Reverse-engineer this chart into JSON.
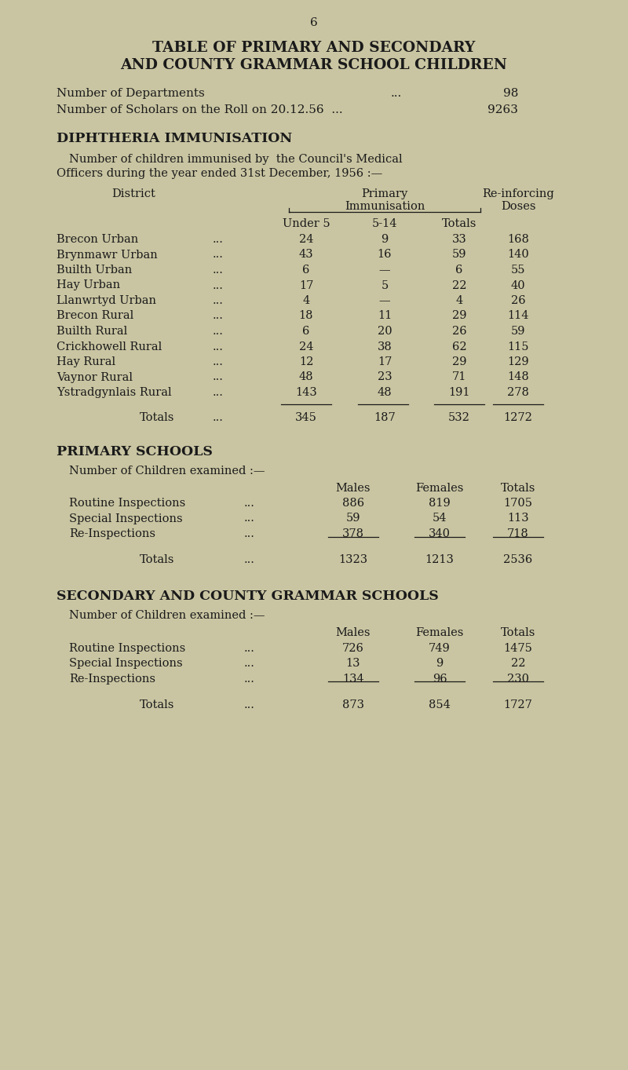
{
  "bg_color": "#c9c5a2",
  "text_color": "#1a1a1a",
  "page_number": "6",
  "title_line1": "TABLE OF PRIMARY AND SECONDARY",
  "title_line2": "AND COUNTY GRAMMAR SCHOOL CHILDREN",
  "info_line1_label": "Number of Departments",
  "info_line1_dots": "...",
  "info_line1_value": "98",
  "info_line2_label": "Number of Scholars on the Roll on 20.12.56  ...",
  "info_line2_value": "9263",
  "section1_title": "DIPHTHERIA IMMUNISATION",
  "diph_rows": [
    [
      "Brecon Urban",
      "...",
      "24",
      "9",
      "33",
      "168"
    ],
    [
      "Brynmawr Urban",
      "...",
      "43",
      "16",
      "59",
      "140"
    ],
    [
      "Builth Urban",
      "...",
      "6",
      "—",
      "6",
      "55"
    ],
    [
      "Hay Urban",
      "...",
      "17",
      "5",
      "22",
      "40"
    ],
    [
      "Llanwrtyd Urban",
      "...",
      "4",
      "—",
      "4",
      "26"
    ],
    [
      "Brecon Rural",
      "...",
      "18",
      "11",
      "29",
      "114"
    ],
    [
      "Builth Rural",
      "...",
      "6",
      "20",
      "26",
      "59"
    ],
    [
      "Crickhowell Rural",
      "...",
      "24",
      "38",
      "62",
      "115"
    ],
    [
      "Hay Rural",
      "...",
      "12",
      "17",
      "29",
      "129"
    ],
    [
      "Vaynor Rural",
      "...",
      "48",
      "23",
      "71",
      "148"
    ],
    [
      "Ystradgynlais Rural",
      "...",
      "143",
      "48",
      "191",
      "278"
    ]
  ],
  "diph_totals": [
    "Totals",
    "...",
    "345",
    "187",
    "532",
    "1272"
  ],
  "section2_title": "PRIMARY SCHOOLS",
  "primary_rows": [
    [
      "Routine Inspections",
      "...",
      "886",
      "819",
      "1705"
    ],
    [
      "Special Inspections",
      "...",
      "59",
      "54",
      "113"
    ],
    [
      "Re-Inspections",
      "...",
      "378",
      "340",
      "718"
    ]
  ],
  "primary_totals": [
    "Totals",
    "...",
    "1323",
    "1213",
    "2536"
  ],
  "section3_title": "SECONDARY AND COUNTY GRAMMAR SCHOOLS",
  "secondary_rows": [
    [
      "Routine Inspections",
      "...",
      "726",
      "749",
      "1475"
    ],
    [
      "Special Inspections",
      "...",
      "13",
      "9",
      "22"
    ],
    [
      "Re-Inspections",
      "...",
      "134",
      "96",
      "230"
    ]
  ],
  "secondary_totals": [
    "Totals",
    "...",
    "873",
    "854",
    "1727"
  ]
}
